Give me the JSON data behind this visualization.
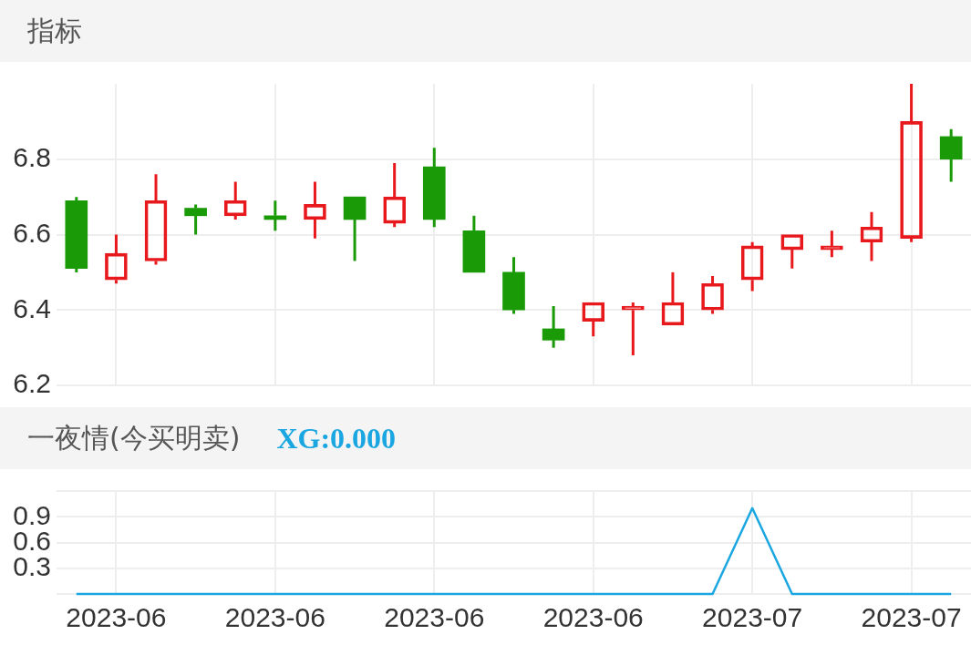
{
  "chart_data": [
    {
      "type": "candlestick",
      "title": "指标",
      "categories": [
        null,
        "2023-06",
        null,
        null,
        null,
        "2023-06",
        null,
        null,
        null,
        "2023-06",
        null,
        null,
        null,
        "2023-06",
        null,
        null,
        null,
        "2023-07",
        null,
        null,
        null,
        "2023-07",
        null
      ],
      "ohlc": [
        [
          6.69,
          6.7,
          6.5,
          6.51
        ],
        [
          6.48,
          6.6,
          6.47,
          6.55
        ],
        [
          6.53,
          6.76,
          6.52,
          6.69
        ],
        [
          6.67,
          6.68,
          6.6,
          6.65
        ],
        [
          6.65,
          6.74,
          6.64,
          6.69
        ],
        [
          6.65,
          6.69,
          6.61,
          6.64
        ],
        [
          6.64,
          6.74,
          6.59,
          6.68
        ],
        [
          6.7,
          6.7,
          6.53,
          6.64
        ],
        [
          6.63,
          6.79,
          6.62,
          6.7
        ],
        [
          6.78,
          6.83,
          6.62,
          6.64
        ],
        [
          6.61,
          6.65,
          6.5,
          6.5
        ],
        [
          6.5,
          6.54,
          6.39,
          6.4
        ],
        [
          6.35,
          6.41,
          6.3,
          6.32
        ],
        [
          6.37,
          6.42,
          6.33,
          6.42
        ],
        [
          6.4,
          6.42,
          6.28,
          6.41
        ],
        [
          6.36,
          6.5,
          6.36,
          6.42
        ],
        [
          6.4,
          6.49,
          6.39,
          6.47
        ],
        [
          6.48,
          6.58,
          6.45,
          6.57
        ],
        [
          6.56,
          6.6,
          6.51,
          6.6
        ],
        [
          6.56,
          6.61,
          6.54,
          6.57
        ],
        [
          6.58,
          6.66,
          6.53,
          6.62
        ],
        [
          6.59,
          7.0,
          6.58,
          6.9
        ],
        [
          6.86,
          6.88,
          6.74,
          6.8
        ]
      ],
      "colors": [
        "#1a9a06",
        "#e8191c",
        "#e8191c",
        "#1a9a06",
        "#e8191c",
        "#1a9a06",
        "#e8191c",
        "#1a9a06",
        "#e8191c",
        "#1a9a06",
        "#1a9a06",
        "#1a9a06",
        "#1a9a06",
        "#e8191c",
        "#e8191c",
        "#e8191c",
        "#e8191c",
        "#e8191c",
        "#e8191c",
        "#e8191c",
        "#e8191c",
        "#e8191c",
        "#1a9a06"
      ],
      "ylim": [
        6.2,
        7.0
      ],
      "yticks": [
        6.2,
        6.4,
        6.6,
        6.8
      ],
      "grid": true,
      "tick_labels": "y"
    },
    {
      "type": "line",
      "title": "一夜情(今买明卖)",
      "categories": [
        null,
        "2023-06",
        null,
        null,
        null,
        "2023-06",
        null,
        null,
        null,
        "2023-06",
        null,
        null,
        null,
        "2023-06",
        null,
        null,
        null,
        "2023-07",
        null,
        null,
        null,
        "2023-07",
        null
      ],
      "series": [
        {
          "name": "XG:0.000",
          "color": "#1aa7e1",
          "values": [
            0,
            0,
            0,
            0,
            0,
            0,
            0,
            0,
            0,
            0,
            0,
            0,
            0,
            0,
            0,
            0,
            0,
            1,
            0,
            0,
            0,
            0,
            0
          ]
        }
      ],
      "ylim": [
        0,
        1.2
      ],
      "yticks": [
        {
          "value": 0,
          "label": null
        },
        0.3,
        0.6,
        0.9,
        {
          "value": 1.2,
          "label": null
        }
      ],
      "grid": true,
      "legend": "top left",
      "marker": "none"
    }
  ]
}
